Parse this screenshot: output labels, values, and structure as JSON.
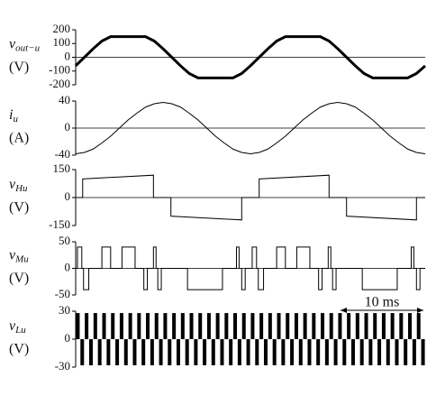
{
  "chart_data": [
    {
      "type": "line",
      "ylabel": {
        "symbol": "v",
        "subscript": "out−u",
        "unit": "(V)"
      },
      "x": [
        0,
        1,
        2,
        3,
        4,
        5,
        6,
        7,
        8,
        9,
        10,
        11,
        12,
        13,
        14,
        15,
        16,
        17,
        18,
        19,
        20,
        21,
        22,
        23,
        24,
        25,
        26,
        27,
        28,
        29,
        30,
        31,
        32,
        33,
        34,
        35,
        36,
        37,
        38,
        39,
        40
      ],
      "values": [
        -62,
        0,
        62,
        118,
        150,
        150,
        150,
        150,
        150,
        118,
        62,
        0,
        -62,
        -118,
        -150,
        -150,
        -150,
        -150,
        -150,
        -118,
        -62,
        0,
        62,
        118,
        150,
        150,
        150,
        150,
        150,
        118,
        62,
        0,
        -62,
        -118,
        -150,
        -150,
        -150,
        -150,
        -150,
        -118,
        -62
      ],
      "color": "#000000",
      "xlim": [
        0,
        40
      ],
      "ylim": [
        -200,
        200
      ],
      "yticks": [
        -200,
        -100,
        0,
        100,
        200
      ],
      "zero_line": true
    },
    {
      "type": "line",
      "ylabel": {
        "symbol": "i",
        "subscript": "u",
        "unit": "(A)"
      },
      "x": [
        0,
        1,
        2,
        3,
        4,
        5,
        6,
        7,
        8,
        9,
        10,
        11,
        12,
        13,
        14,
        15,
        16,
        17,
        18,
        19,
        20,
        21,
        22,
        23,
        24,
        25,
        26,
        27,
        28,
        29,
        30,
        31,
        32,
        33,
        34,
        35,
        36,
        37,
        38,
        39,
        40
      ],
      "values": [
        -38,
        -36,
        -31,
        -22,
        -12,
        0,
        12,
        22,
        31,
        36,
        38,
        36,
        31,
        22,
        12,
        0,
        -12,
        -22,
        -31,
        -36,
        -38,
        -36,
        -31,
        -22,
        -12,
        0,
        12,
        22,
        31,
        36,
        38,
        36,
        31,
        22,
        12,
        0,
        -12,
        -22,
        -31,
        -36,
        -38
      ],
      "color": "#000000",
      "xlim": [
        0,
        40
      ],
      "ylim": [
        -40,
        40
      ],
      "yticks": [
        -40,
        0,
        40
      ],
      "zero_line": true
    },
    {
      "type": "line",
      "ylabel": {
        "symbol": "v",
        "subscript": "Hu",
        "unit": "(V)"
      },
      "x": [
        0,
        0.8,
        0.8,
        8.9,
        8.9,
        10.9,
        10.9,
        19,
        19,
        21,
        21,
        29,
        29,
        31,
        31,
        39,
        39,
        40
      ],
      "values": [
        0,
        0,
        100,
        120,
        0,
        0,
        -100,
        -120,
        0,
        0,
        100,
        120,
        0,
        0,
        -100,
        -120,
        0,
        0
      ],
      "color": "#000000",
      "xlim": [
        0,
        40
      ],
      "ylim": [
        -150,
        150
      ],
      "yticks": [
        -150,
        0,
        150
      ],
      "zero_line": true
    },
    {
      "type": "line",
      "ylabel": {
        "symbol": "v",
        "subscript": "Mu",
        "unit": "(V)"
      },
      "x": [
        0,
        0.2,
        0.2,
        0.7,
        0.7,
        0.9,
        0.9,
        1.5,
        1.5,
        3,
        3,
        4,
        4,
        5.3,
        5.3,
        6.8,
        6.8,
        7.8,
        7.8,
        8.2,
        8.2,
        8.9,
        8.9,
        9.2,
        9.2,
        9.4,
        9.4,
        9.8,
        9.8,
        12.8,
        12.8,
        16.8,
        16.8,
        18.4,
        18.4,
        18.7,
        18.7,
        19,
        19,
        19.4,
        19.4,
        20.2,
        20.2,
        20.7,
        20.7,
        20.9,
        20.9,
        21.5,
        21.5,
        23,
        23,
        24,
        24,
        25.3,
        25.3,
        26.8,
        26.8,
        27.8,
        27.8,
        28.2,
        28.2,
        28.9,
        28.9,
        29.2,
        29.2,
        29.4,
        29.4,
        29.8,
        29.8,
        32.8,
        32.8,
        36.8,
        36.8,
        38.4,
        38.4,
        38.7,
        38.7,
        39,
        39,
        39.4,
        39.4,
        40
      ],
      "values": [
        0,
        0,
        40,
        40,
        0,
        0,
        -40,
        -40,
        0,
        0,
        40,
        40,
        0,
        0,
        40,
        40,
        0,
        0,
        -40,
        -40,
        0,
        0,
        40,
        40,
        0,
        0,
        -40,
        -40,
        0,
        0,
        -40,
        -40,
        0,
        0,
        40,
        40,
        0,
        0,
        -40,
        -40,
        0,
        0,
        40,
        40,
        0,
        0,
        -40,
        -40,
        0,
        0,
        40,
        40,
        0,
        0,
        40,
        40,
        0,
        0,
        -40,
        -40,
        0,
        0,
        40,
        40,
        0,
        0,
        -40,
        -40,
        0,
        0,
        -40,
        -40,
        0,
        0,
        40,
        40,
        0,
        0,
        -40,
        -40,
        0,
        0
      ],
      "color": "#000000",
      "xlim": [
        0,
        40
      ],
      "ylim": [
        -50,
        50
      ],
      "yticks": [
        -50,
        0,
        50
      ],
      "zero_line": true
    },
    {
      "type": "bar",
      "ylabel": {
        "symbol": "v",
        "subscript": "Lu",
        "unit": "(V)"
      },
      "annotation": "10 ms",
      "x": [
        0.25,
        0.75,
        1.25,
        1.75,
        2.25,
        2.75,
        3.25,
        3.75,
        4.25,
        4.75,
        5.25,
        5.75,
        6.25,
        6.75,
        7.25,
        7.75,
        8.25,
        8.75,
        9.25,
        9.75,
        10.25,
        10.75,
        11.25,
        11.75,
        12.25,
        12.75,
        13.25,
        13.75,
        14.25,
        14.75,
        15.25,
        15.75,
        16.25,
        16.75,
        17.25,
        17.75,
        18.25,
        18.75,
        19.25,
        19.75,
        20.25,
        20.75,
        21.25,
        21.75,
        22.25,
        22.75,
        23.25,
        23.75,
        24.25,
        24.75,
        25.25,
        25.75,
        26.25,
        26.75,
        27.25,
        27.75,
        28.25,
        28.75,
        29.25,
        29.75,
        30.25,
        30.75,
        31.25,
        31.75,
        32.25,
        32.75,
        33.25,
        33.75,
        34.25,
        34.75,
        35.25,
        35.75,
        36.25,
        36.75,
        37.25,
        37.75,
        38.25,
        38.75,
        39.25,
        39.75
      ],
      "values": [
        28,
        -28,
        28,
        -28,
        28,
        -28,
        28,
        -28,
        28,
        -28,
        28,
        -28,
        28,
        -28,
        28,
        -28,
        28,
        -28,
        28,
        -28,
        28,
        -28,
        28,
        -28,
        28,
        -28,
        28,
        -28,
        28,
        -28,
        28,
        -28,
        28,
        -28,
        28,
        -28,
        28,
        -28,
        28,
        -28,
        28,
        -28,
        28,
        -28,
        28,
        -28,
        28,
        -28,
        28,
        -28,
        28,
        -28,
        28,
        -28,
        28,
        -28,
        28,
        -28,
        28,
        -28,
        28,
        -28,
        28,
        -28,
        28,
        -28,
        28,
        -28,
        28,
        -28,
        28,
        -28,
        28,
        -28,
        28,
        -28,
        28,
        -28,
        28,
        -28
      ],
      "color": "#000000",
      "xlim": [
        0,
        40
      ],
      "ylim": [
        -30,
        30
      ],
      "yticks": [
        -30,
        0,
        30
      ],
      "zero_line": false
    }
  ]
}
